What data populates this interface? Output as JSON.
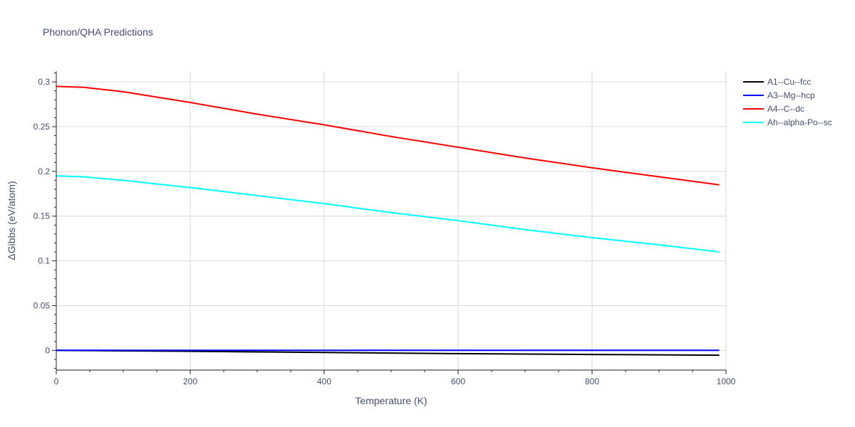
{
  "chart_data": {
    "type": "line",
    "title": "Phonon/QHA Predictions",
    "xlabel": "Temperature (K)",
    "ylabel": "ΔGibbs (eV/atom)",
    "xlim": [
      0,
      1000
    ],
    "ylim": [
      -0.022,
      0.312
    ],
    "xticks": [
      0,
      200,
      400,
      600,
      800,
      1000
    ],
    "yticks": [
      0,
      0.05,
      0.1,
      0.15,
      0.2,
      0.25,
      0.3
    ],
    "ytick_labels": [
      "0",
      "0.05",
      "0.1",
      "0.15",
      "0.2",
      "0.25",
      "0.3"
    ],
    "grid": true,
    "legend_position": "top-right outside",
    "series": [
      {
        "name": "A1--Cu--fcc",
        "color": "#000000",
        "x": [
          0,
          40,
          100,
          200,
          300,
          400,
          500,
          600,
          700,
          800,
          900,
          990
        ],
        "y": [
          0,
          -0.0002,
          -0.0005,
          -0.001,
          -0.0017,
          -0.0023,
          -0.003,
          -0.0036,
          -0.0041,
          -0.0046,
          -0.005,
          -0.0054
        ]
      },
      {
        "name": "A3--Mg--hcp",
        "color": "#0000ff",
        "x": [
          0,
          200,
          400,
          600,
          800,
          990
        ],
        "y": [
          0,
          0,
          0,
          0,
          0,
          0
        ]
      },
      {
        "name": "A4--C--dc",
        "color": "#ff0000",
        "x": [
          0,
          40,
          100,
          200,
          300,
          400,
          500,
          600,
          700,
          800,
          900,
          990
        ],
        "y": [
          0.295,
          0.294,
          0.289,
          0.277,
          0.264,
          0.252,
          0.239,
          0.227,
          0.215,
          0.204,
          0.194,
          0.185
        ]
      },
      {
        "name": "Ah--alpha-Po--sc",
        "color": "#00ffff",
        "x": [
          0,
          40,
          100,
          200,
          300,
          400,
          500,
          600,
          700,
          800,
          900,
          990
        ],
        "y": [
          0.195,
          0.194,
          0.19,
          0.182,
          0.173,
          0.164,
          0.154,
          0.145,
          0.135,
          0.126,
          0.118,
          0.11
        ]
      }
    ]
  }
}
